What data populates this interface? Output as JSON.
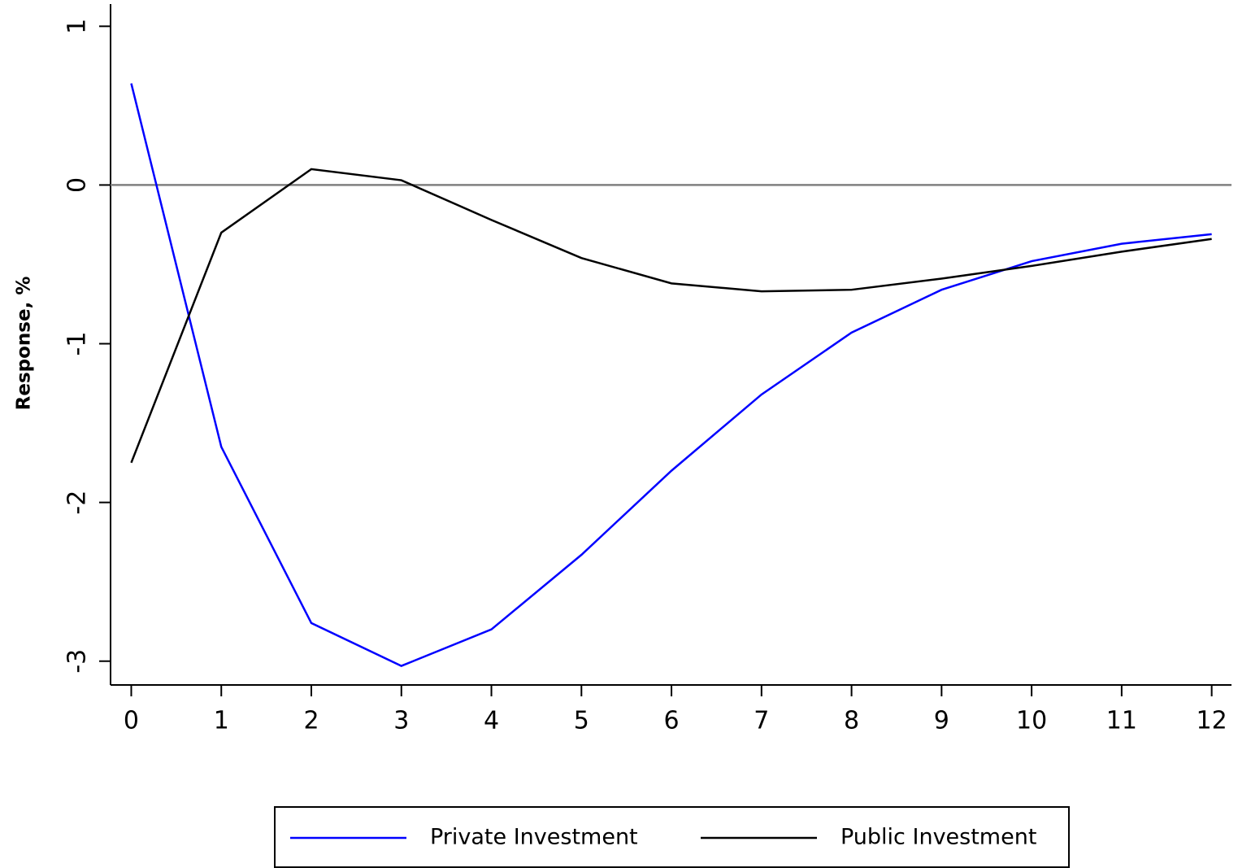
{
  "chart_data": {
    "type": "line",
    "y_label": "Response, %",
    "x": [
      0,
      1,
      2,
      3,
      4,
      5,
      6,
      7,
      8,
      9,
      10,
      11,
      12
    ],
    "series": [
      {
        "name": "Private Investment",
        "color": "#0000ff",
        "values": [
          0.64,
          -1.65,
          -2.76,
          -3.03,
          -2.8,
          -2.33,
          -1.8,
          -1.32,
          -0.93,
          -0.66,
          -0.48,
          -0.37,
          -0.31
        ]
      },
      {
        "name": "Public Investment",
        "color": "#000000",
        "values": [
          -1.75,
          -0.3,
          0.1,
          0.03,
          -0.22,
          -0.46,
          -0.62,
          -0.67,
          -0.66,
          -0.59,
          -0.51,
          -0.42,
          -0.34
        ]
      }
    ],
    "xlim": [
      -0.23,
      12.22
    ],
    "ylim": [
      -3.15,
      1.14
    ],
    "xticks": [
      0,
      1,
      2,
      3,
      4,
      5,
      6,
      7,
      8,
      9,
      10,
      11,
      12
    ],
    "yticks": [
      -3,
      -2,
      -1,
      0,
      1
    ],
    "reference_line": 0,
    "reference_color": "#808080",
    "legend": "bottom"
  }
}
